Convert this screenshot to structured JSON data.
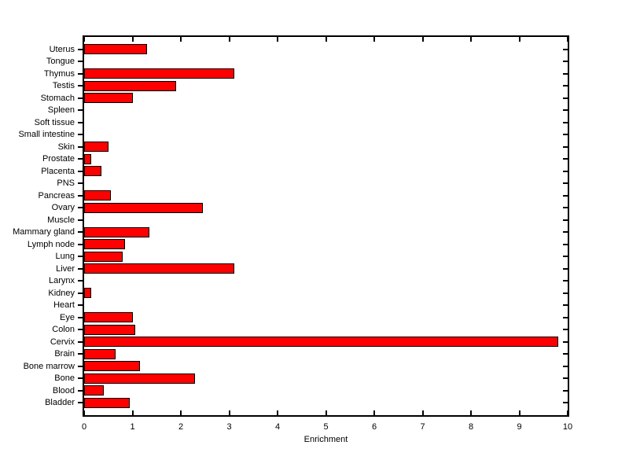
{
  "figure": {
    "background_color": "#ffffff",
    "axes_line_color": "#000000"
  },
  "chart_data": {
    "type": "bar",
    "orientation": "horizontal",
    "title": "",
    "xlabel": "Enrichment",
    "ylabel": "",
    "xlim": [
      0,
      10
    ],
    "xticks": [
      0,
      1,
      2,
      3,
      4,
      5,
      6,
      7,
      8,
      9,
      10
    ],
    "grid": false,
    "legend_position": "none",
    "bar_color": "#ff0000",
    "bar_edge_color": "#000000",
    "category_order": "top-to-bottom",
    "categories": [
      "Uterus",
      "Tongue",
      "Thymus",
      "Testis",
      "Stomach",
      "Spleen",
      "Soft tissue",
      "Small intestine",
      "Skin",
      "Prostate",
      "Placenta",
      "PNS",
      "Pancreas",
      "Ovary",
      "Muscle",
      "Mammary gland",
      "Lymph node",
      "Lung",
      "Liver",
      "Larynx",
      "Kidney",
      "Heart",
      "Eye",
      "Colon",
      "Cervix",
      "Brain",
      "Bone marrow",
      "Bone",
      "Blood",
      "Bladder"
    ],
    "values": [
      1.3,
      0,
      3.1,
      1.9,
      1.0,
      0,
      0,
      0,
      0.5,
      0.15,
      0.35,
      0,
      0.55,
      2.45,
      0,
      1.35,
      0.85,
      0.8,
      3.1,
      0,
      0.15,
      0,
      1.0,
      1.05,
      9.8,
      0.65,
      1.15,
      2.3,
      0.4,
      0.95
    ]
  }
}
